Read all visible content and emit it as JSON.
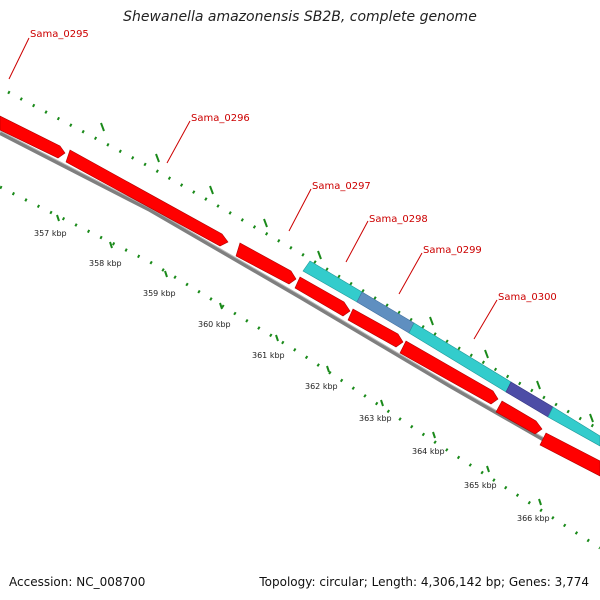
{
  "title": "Shewanella amazonensis SB2B, complete genome",
  "footer": {
    "accession": "Accession: NC_008700",
    "summary": "Topology: circular; Length: 4,306,142 bp; Genes: 3,774"
  },
  "colors": {
    "cds": "#ff0000",
    "cds_dark": "#b00000",
    "rna_light": "#33cccc",
    "rna_mid": "#5f8fc0",
    "rna_dark": "#4d4da6",
    "backbone": "#7f7f7f",
    "tick": "#1a8a1a",
    "label": "#cc0000",
    "tick_label": "#222222"
  },
  "genes": [
    {
      "name": "Sama_0295",
      "strand": "forward"
    },
    {
      "name": "Sama_0296",
      "strand": "forward"
    },
    {
      "name": "Sama_0297",
      "strand": "forward"
    },
    {
      "name": "Sama_0298",
      "strand": "forward"
    },
    {
      "name": "Sama_0299",
      "strand": "forward"
    },
    {
      "name": "Sama_0300",
      "strand": "forward"
    }
  ],
  "ticks": [
    {
      "label": "357 kbp"
    },
    {
      "label": "358 kbp"
    },
    {
      "label": "359 kbp"
    },
    {
      "label": "360 kbp"
    },
    {
      "label": "361 kbp"
    },
    {
      "label": "362 kbp"
    },
    {
      "label": "363 kbp"
    },
    {
      "label": "364 kbp"
    },
    {
      "label": "365 kbp"
    },
    {
      "label": "366 kbp"
    }
  ]
}
